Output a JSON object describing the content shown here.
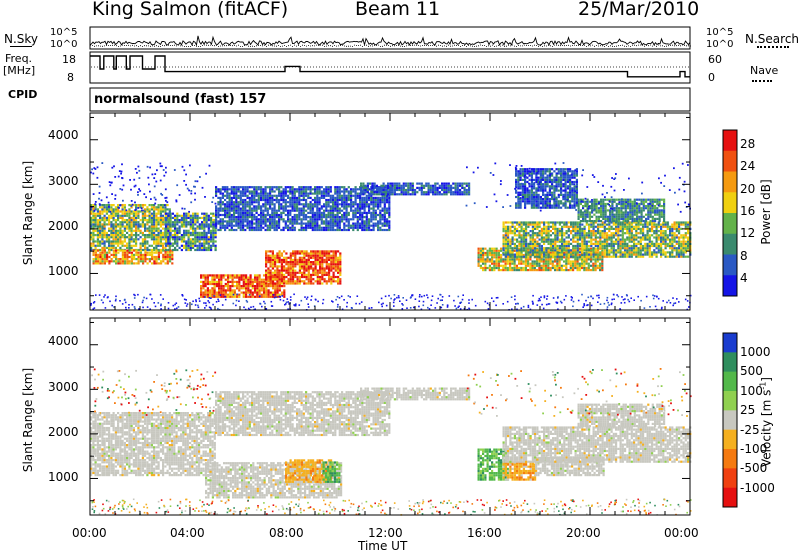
{
  "header": {
    "station": "King Salmon (fitACF)",
    "beam": "Beam 11",
    "date": "25/Mar/2010"
  },
  "top_labels": {
    "nsky": "N.Sky",
    "freq": "Freq.",
    "mhz": "[MHz]",
    "cpid": "CPID",
    "nsearch": "N.Search",
    "nave": "Nave",
    "cpid_value": "normalsound (fast) 157"
  },
  "chart_data": [
    {
      "type": "line",
      "name": "noise",
      "left_ticks": [
        "10^5",
        "10^0"
      ],
      "right_ticks": [
        "10^5",
        "10^0"
      ]
    },
    {
      "type": "line",
      "name": "frequency-nave",
      "left_ticks": [
        "18",
        "8"
      ],
      "right_ticks": [
        "60",
        "0"
      ],
      "freq_steps": [
        {
          "t": 0.0,
          "f": 18
        },
        {
          "t": 0.4,
          "f": 13
        },
        {
          "t": 0.55,
          "f": 18
        },
        {
          "t": 0.95,
          "f": 13
        },
        {
          "t": 1.05,
          "f": 18
        },
        {
          "t": 1.45,
          "f": 13
        },
        {
          "t": 1.6,
          "f": 18
        },
        {
          "t": 2.1,
          "f": 13
        },
        {
          "t": 2.6,
          "f": 18
        },
        {
          "t": 3.0,
          "f": 12
        },
        {
          "t": 7.8,
          "f": 14
        },
        {
          "t": 8.4,
          "f": 12
        },
        {
          "t": 21.5,
          "f": 10
        },
        {
          "t": 23.6,
          "f": 12
        },
        {
          "t": 23.8,
          "f": 10
        },
        {
          "t": 24.0,
          "f": 10
        }
      ]
    },
    {
      "type": "heatmap",
      "name": "power",
      "ylabel": "Slant Range [km]",
      "yticks": [
        "4000",
        "3000",
        "2000",
        "1000"
      ],
      "ylim": [
        180,
        4600
      ],
      "colorbar": {
        "label": "Power [dB]",
        "ticks": [
          "28",
          "24",
          "20",
          "16",
          "12",
          "8",
          "4"
        ],
        "colors": [
          "#1515e6",
          "#2a59c4",
          "#3a8a6e",
          "#63b24a",
          "#f0d010",
          "#f59a10",
          "#f05010",
          "#e61010"
        ]
      },
      "bands": [
        {
          "t0": 0.0,
          "t1": 3.2,
          "r0": 1550,
          "r1": 2600,
          "lvl": 3,
          "spread": 2
        },
        {
          "t0": 0.1,
          "t1": 3.3,
          "r0": 1250,
          "r1": 1550,
          "lvl": 5,
          "spread": 2
        },
        {
          "t0": 3.0,
          "t1": 5.0,
          "r0": 1550,
          "r1": 2400,
          "lvl": 2,
          "spread": 2
        },
        {
          "t0": 4.4,
          "t1": 7.8,
          "r0": 500,
          "r1": 1000,
          "lvl": 6,
          "spread": 2
        },
        {
          "t0": 7.0,
          "t1": 10.0,
          "r0": 800,
          "r1": 1550,
          "lvl": 6,
          "spread": 2
        },
        {
          "t0": 5.0,
          "t1": 12.0,
          "r0": 2000,
          "r1": 3000,
          "lvl": 1,
          "spread": 1
        },
        {
          "t0": 10.8,
          "t1": 15.2,
          "r0": 2800,
          "r1": 3050,
          "lvl": 1,
          "spread": 1
        },
        {
          "t0": 15.5,
          "t1": 20.5,
          "r0": 1100,
          "r1": 1600,
          "lvl": 4,
          "spread": 2
        },
        {
          "t0": 16.5,
          "t1": 24.0,
          "r0": 1400,
          "r1": 2200,
          "lvl": 3,
          "spread": 2
        },
        {
          "t0": 19.5,
          "t1": 23.0,
          "r0": 2200,
          "r1": 2700,
          "lvl": 2,
          "spread": 1
        },
        {
          "t0": 17.0,
          "t1": 19.5,
          "r0": 2500,
          "r1": 3400,
          "lvl": 1,
          "spread": 1
        }
      ]
    },
    {
      "type": "heatmap",
      "name": "velocity",
      "ylabel": "Slant Range [km]",
      "yticks": [
        "4000",
        "3000",
        "2000",
        "1000"
      ],
      "ylim": [
        180,
        4600
      ],
      "xlabel": "Time UT",
      "xticks": [
        "00:00",
        "04:00",
        "08:00",
        "12:00",
        "16:00",
        "20:00",
        "00:00"
      ],
      "xlim": [
        0,
        24
      ],
      "colorbar": {
        "label": "Velocity [m s",
        "label_sup": "-1",
        "label_end": "]",
        "ticks": [
          "1000",
          "500",
          "100",
          "25",
          "-25",
          "-100",
          "-500",
          "-1000"
        ],
        "colors": [
          "#1a3ccf",
          "#2f8e5e",
          "#52b84a",
          "#90d050",
          "#c8c8c0",
          "#f5b020",
          "#f57a10",
          "#f04010",
          "#e61010"
        ]
      },
      "bands": [
        {
          "t0": 0.0,
          "t1": 5.0,
          "r0": 1100,
          "r1": 2500,
          "kind": "gray"
        },
        {
          "t0": 4.6,
          "t1": 10.0,
          "r0": 600,
          "r1": 1400,
          "kind": "gray"
        },
        {
          "t0": 5.0,
          "t1": 12.0,
          "r0": 2000,
          "r1": 3000,
          "kind": "gray"
        },
        {
          "t0": 7.8,
          "t1": 9.6,
          "r0": 950,
          "r1": 1450,
          "kind": "orange"
        },
        {
          "t0": 9.3,
          "t1": 10.0,
          "r0": 950,
          "r1": 1400,
          "kind": "green"
        },
        {
          "t0": 10.8,
          "t1": 15.2,
          "r0": 2800,
          "r1": 3050,
          "kind": "gray"
        },
        {
          "t0": 15.5,
          "t1": 16.7,
          "r0": 1000,
          "r1": 1700,
          "kind": "green"
        },
        {
          "t0": 16.5,
          "t1": 17.8,
          "r0": 1000,
          "r1": 1400,
          "kind": "orange"
        },
        {
          "t0": 17.8,
          "t1": 20.5,
          "r0": 1100,
          "r1": 1500,
          "kind": "gray"
        },
        {
          "t0": 16.5,
          "t1": 24.0,
          "r0": 1400,
          "r1": 2200,
          "kind": "gray"
        },
        {
          "t0": 19.5,
          "t1": 23.0,
          "r0": 2200,
          "r1": 2700,
          "kind": "gray"
        }
      ]
    }
  ]
}
